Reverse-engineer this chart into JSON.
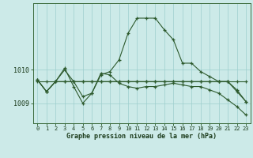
{
  "title": "Graphe pression niveau de la mer (hPa)",
  "background_color": "#cceae8",
  "line_color": "#2d5a2d",
  "xlim": [
    -0.5,
    23.5
  ],
  "ylim": [
    1008.4,
    1012.0
  ],
  "yticks": [
    1009,
    1010
  ],
  "xticks": [
    0,
    1,
    2,
    3,
    4,
    5,
    6,
    7,
    8,
    9,
    10,
    11,
    12,
    13,
    14,
    15,
    16,
    17,
    18,
    19,
    20,
    21,
    22,
    23
  ],
  "s1": [
    1009.7,
    1009.35,
    1009.65,
    1010.0,
    1009.65,
    1009.2,
    1009.3,
    1009.85,
    1009.95,
    1010.3,
    1011.1,
    1011.55,
    1011.55,
    1011.55,
    1011.2,
    1010.9,
    1010.2,
    1010.2,
    1009.95,
    1009.8,
    1009.65,
    1009.65,
    1009.35,
    1009.05
  ],
  "s2": [
    1009.65,
    1009.65,
    1009.65,
    1009.65,
    1009.65,
    1009.65,
    1009.65,
    1009.65,
    1009.65,
    1009.65,
    1009.65,
    1009.65,
    1009.65,
    1009.65,
    1009.65,
    1009.65,
    1009.65,
    1009.65,
    1009.65,
    1009.65,
    1009.65,
    1009.65,
    1009.65,
    1009.65
  ],
  "s3": [
    1009.7,
    1009.35,
    1009.65,
    1010.05,
    1009.5,
    1009.0,
    1009.3,
    1009.9,
    1009.85,
    1009.6,
    1009.5,
    1009.45,
    1009.5,
    1009.5,
    1009.55,
    1009.6,
    1009.55,
    1009.5,
    1009.5,
    1009.4,
    1009.3,
    1009.1,
    1008.9,
    1008.65
  ],
  "s4": [
    1009.7,
    1009.35,
    1009.65,
    1009.65,
    1009.65,
    1009.65,
    1009.65,
    1009.65,
    1009.65,
    1009.65,
    1009.65,
    1009.65,
    1009.65,
    1009.65,
    1009.65,
    1009.65,
    1009.65,
    1009.65,
    1009.65,
    1009.65,
    1009.65,
    1009.65,
    1009.4,
    1009.05
  ]
}
